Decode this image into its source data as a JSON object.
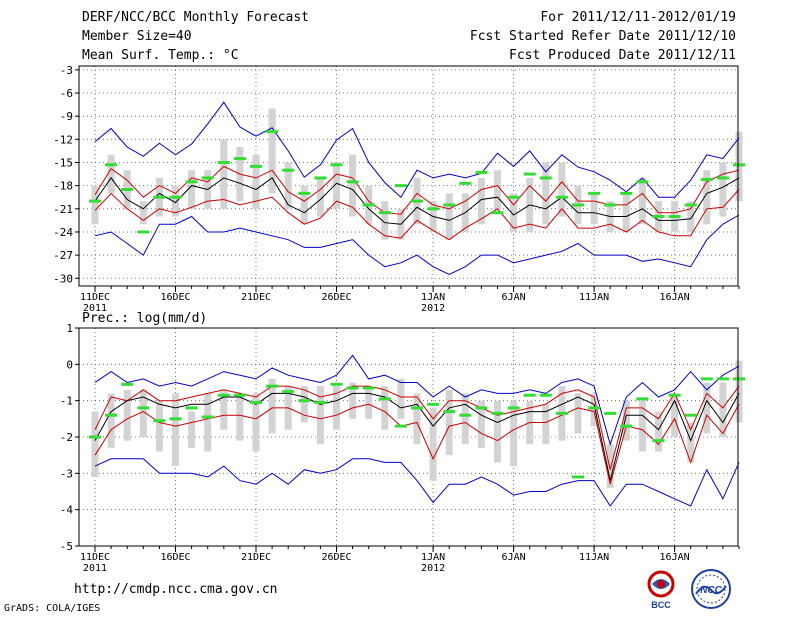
{
  "header": {
    "title": "DERF/NCC/BCC Monthly Forecast",
    "member_size": "Member Size=40",
    "variable": "Mean Surf. Temp.: °C",
    "period": "For 2011/12/11-2012/01/19",
    "started": "Fcst Started Refer Date 2011/12/10",
    "produced": "Fcst Produced Date 2011/12/11"
  },
  "footer": {
    "url": "http://cmdp.ncc.cma.gov.cn",
    "credit": "GrADS: COLA/IGES",
    "logo_bcc": "BCC",
    "logo_ncc": "NCC"
  },
  "chart_data": [
    {
      "type": "line",
      "title": "Mean Surf. Temp.: °C",
      "ylim": [
        -31,
        -2.5
      ],
      "yticks": [
        -3,
        -6,
        -9,
        -12,
        -15,
        -18,
        -21,
        -24,
        -27,
        -30
      ],
      "ytick_labels": [
        "-3",
        "-6",
        "-9",
        "-12",
        "-15",
        "-18",
        "-21",
        "-24",
        "-27",
        "-30"
      ],
      "x_days": 40,
      "xticks": [
        {
          "day": 1,
          "label": "11DEC",
          "sub": "2011"
        },
        {
          "day": 6,
          "label": "16DEC",
          "sub": ""
        },
        {
          "day": 11,
          "label": "21DEC",
          "sub": ""
        },
        {
          "day": 16,
          "label": "26DEC",
          "sub": ""
        },
        {
          "day": 22,
          "label": "1JAN",
          "sub": "2012"
        },
        {
          "day": 27,
          "label": "6JAN",
          "sub": ""
        },
        {
          "day": 32,
          "label": "11JAN",
          "sub": ""
        },
        {
          "day": 37,
          "label": "16JAN",
          "sub": ""
        }
      ],
      "grid": true,
      "colors": {
        "max": "#0000cc",
        "min": "#0000cc",
        "upper": "#cc0000",
        "lower": "#cc0000",
        "mean": "#000000",
        "box": "#d3d3d3",
        "marker": "#33dd33"
      },
      "series": [
        {
          "name": "max",
          "values": [
            -12.3,
            -10.6,
            -13.0,
            -14.2,
            -12.5,
            -14.0,
            -12.6,
            -10.0,
            -7.2,
            -10.4,
            -11.6,
            -10.5,
            -13.5,
            -16.9,
            -15.3,
            -12.1,
            -10.6,
            -15.0,
            -17.6,
            -19.5,
            -16.0,
            -17.0,
            -16.5,
            -17.0,
            -16.4,
            -13.8,
            -15.5,
            -13.5,
            -16.2,
            -14.0,
            -15.6,
            -16.2,
            -17.3,
            -18.8,
            -17.0,
            -19.5,
            -19.5,
            -17.3,
            -14.0,
            -14.5,
            -11.8
          ]
        },
        {
          "name": "upper",
          "values": [
            -19.2,
            -15.8,
            -17.3,
            -19.5,
            -18.0,
            -19.0,
            -17.0,
            -17.5,
            -15.5,
            -16.5,
            -17.0,
            -16.0,
            -18.8,
            -20.0,
            -18.5,
            -16.5,
            -17.0,
            -20.0,
            -21.5,
            -21.7,
            -19.0,
            -20.5,
            -21.0,
            -20.0,
            -18.5,
            -18.0,
            -20.5,
            -18.0,
            -20.0,
            -17.5,
            -20.0,
            -20.0,
            -20.5,
            -20.5,
            -19.0,
            -21.5,
            -21.5,
            -21.0,
            -17.5,
            -16.5,
            -16.0
          ]
        },
        {
          "name": "mean",
          "values": [
            -20.0,
            -17.0,
            -19.8,
            -21.0,
            -19.0,
            -20.2,
            -18.0,
            -18.5,
            -17.0,
            -17.7,
            -18.5,
            -17.0,
            -20.5,
            -21.5,
            -19.8,
            -17.7,
            -18.5,
            -21.0,
            -22.8,
            -23.0,
            -20.8,
            -22.0,
            -22.5,
            -21.5,
            -19.8,
            -19.5,
            -21.8,
            -20.5,
            -21.0,
            -19.5,
            -21.5,
            -21.5,
            -22.0,
            -22.0,
            -21.0,
            -22.5,
            -22.5,
            -22.3,
            -19.0,
            -18.2,
            -17.0
          ]
        },
        {
          "name": "lower",
          "values": [
            -21.2,
            -19.0,
            -21.0,
            -22.5,
            -21.0,
            -21.5,
            -20.8,
            -20.0,
            -19.8,
            -20.5,
            -20.0,
            -19.5,
            -21.5,
            -23.0,
            -22.2,
            -20.0,
            -20.8,
            -23.0,
            -24.5,
            -24.8,
            -22.5,
            -23.8,
            -25.0,
            -23.5,
            -22.3,
            -21.0,
            -23.5,
            -23.0,
            -23.5,
            -21.0,
            -23.5,
            -23.5,
            -23.0,
            -24.0,
            -22.5,
            -24.0,
            -24.5,
            -24.5,
            -21.0,
            -20.8,
            -18.5
          ]
        },
        {
          "name": "min",
          "values": [
            -24.5,
            -24.0,
            -25.5,
            -27.0,
            -23.0,
            -23.0,
            -22.0,
            -24.0,
            -24.0,
            -23.5,
            -24.0,
            -24.5,
            -25.0,
            -26.0,
            -26.0,
            -25.5,
            -25.0,
            -27.0,
            -28.5,
            -28.0,
            -27.0,
            -28.5,
            -29.5,
            -28.5,
            -27.0,
            -27.0,
            -28.0,
            -27.5,
            -27.0,
            -26.5,
            -25.5,
            -27.0,
            -27.0,
            -27.0,
            -27.8,
            -27.5,
            -28.0,
            -28.5,
            -25.0,
            -23.0,
            -21.8
          ]
        }
      ],
      "boxes": [
        [
          -23,
          -18
        ],
        [
          -19,
          -14
        ],
        [
          -21,
          -16
        ],
        [
          -23,
          -20
        ],
        [
          -22,
          -17
        ],
        [
          -22,
          -18
        ],
        [
          -21,
          -16
        ],
        [
          -21,
          -16
        ],
        [
          -21,
          -12
        ],
        [
          -20,
          -13
        ],
        [
          -21,
          -14
        ],
        [
          -19,
          -8
        ],
        [
          -21,
          -15
        ],
        [
          -23,
          -18
        ],
        [
          -22,
          -17
        ],
        [
          -21,
          -15
        ],
        [
          -22,
          -14
        ],
        [
          -23,
          -18
        ],
        [
          -25,
          -20
        ],
        [
          -25,
          -21
        ],
        [
          -23,
          -17
        ],
        [
          -24,
          -20
        ],
        [
          -25,
          -19
        ],
        [
          -24,
          -19
        ],
        [
          -23,
          -17
        ],
        [
          -21,
          -16
        ],
        [
          -24,
          -19
        ],
        [
          -24,
          -17
        ],
        [
          -23,
          -15
        ],
        [
          -22,
          -15
        ],
        [
          -23,
          -18
        ],
        [
          -23,
          -19
        ],
        [
          -24,
          -20
        ],
        [
          -24,
          -19
        ],
        [
          -23,
          -17
        ],
        [
          -24,
          -20
        ],
        [
          -24,
          -20
        ],
        [
          -24,
          -20
        ],
        [
          -23,
          -16
        ],
        [
          -22,
          -15
        ],
        [
          -20,
          -11
        ]
      ],
      "markers": [
        -20.0,
        -15.3,
        -18.5,
        -24.0,
        -19.5,
        -19.5,
        -17.5,
        -17.0,
        -15.0,
        -14.5,
        -15.5,
        -11.0,
        -16.0,
        -19.0,
        -17.0,
        -15.3,
        -17.5,
        -20.5,
        -21.5,
        -18.0,
        -20.0,
        -21.0,
        -20.5,
        -17.7,
        -16.3,
        -21.5,
        -19.5,
        -16.5,
        -17.0,
        -19.5,
        -20.5,
        -19.0,
        -20.5,
        -19.0,
        -17.5,
        -22.0,
        -22.0,
        -20.5,
        -17.2,
        -17.0,
        -15.3
      ]
    },
    {
      "type": "line",
      "title": "Prec.: log(mm/d)",
      "ylim": [
        -5,
        1
      ],
      "yticks": [
        1,
        0,
        -1,
        -2,
        -3,
        -4,
        -5
      ],
      "ytick_labels": [
        "1",
        "0",
        "-1",
        "-2",
        "-3",
        "-4",
        "-5"
      ],
      "x_days": 40,
      "xticks": [
        {
          "day": 1,
          "label": "11DEC",
          "sub": "2011"
        },
        {
          "day": 6,
          "label": "16DEC",
          "sub": ""
        },
        {
          "day": 11,
          "label": "21DEC",
          "sub": ""
        },
        {
          "day": 16,
          "label": "26DEC",
          "sub": ""
        },
        {
          "day": 22,
          "label": "1JAN",
          "sub": "2012"
        },
        {
          "day": 27,
          "label": "6JAN",
          "sub": ""
        },
        {
          "day": 32,
          "label": "11JAN",
          "sub": ""
        },
        {
          "day": 37,
          "label": "16JAN",
          "sub": ""
        }
      ],
      "grid": true,
      "colors": {
        "max": "#0000cc",
        "min": "#0000cc",
        "upper": "#cc0000",
        "lower": "#cc0000",
        "mean": "#000000",
        "box": "#d3d3d3",
        "marker": "#33dd33"
      },
      "series": [
        {
          "name": "max",
          "values": [
            -0.5,
            -0.2,
            -0.5,
            -0.4,
            -0.6,
            -0.5,
            -0.6,
            -0.4,
            -0.2,
            -0.3,
            -0.4,
            -0.1,
            -0.3,
            -0.4,
            -0.5,
            -0.3,
            0.25,
            -0.4,
            -0.3,
            -0.5,
            -0.5,
            -0.9,
            -0.6,
            -0.9,
            -0.7,
            -0.8,
            -0.8,
            -0.7,
            -0.8,
            -0.5,
            -0.4,
            -0.6,
            -2.2,
            -0.9,
            -0.5,
            -0.9,
            -0.7,
            -0.2,
            -0.7,
            -0.3,
            -0.05
          ]
        },
        {
          "name": "upper",
          "values": [
            -1.8,
            -0.9,
            -1.0,
            -0.7,
            -1.0,
            -1.0,
            -0.9,
            -0.8,
            -0.7,
            -0.8,
            -0.9,
            -0.6,
            -0.6,
            -0.7,
            -0.9,
            -0.8,
            -0.6,
            -0.6,
            -0.7,
            -0.9,
            -0.9,
            -1.5,
            -1.0,
            -1.0,
            -1.2,
            -1.4,
            -1.3,
            -1.2,
            -1.1,
            -0.8,
            -0.7,
            -0.9,
            -2.9,
            -1.2,
            -1.2,
            -1.5,
            -0.8,
            -1.8,
            -0.8,
            -1.2,
            -0.6
          ]
        },
        {
          "name": "mean",
          "values": [
            -2.1,
            -1.3,
            -1.0,
            -0.9,
            -1.1,
            -1.2,
            -1.1,
            -1.1,
            -0.9,
            -0.9,
            -1.1,
            -0.8,
            -0.8,
            -0.9,
            -1.1,
            -1.0,
            -0.8,
            -0.8,
            -0.9,
            -1.2,
            -1.1,
            -1.7,
            -1.2,
            -1.1,
            -1.4,
            -1.6,
            -1.4,
            -1.3,
            -1.3,
            -1.1,
            -0.9,
            -1.1,
            -3.2,
            -1.4,
            -1.4,
            -1.8,
            -1.0,
            -2.1,
            -1.0,
            -1.6,
            -0.8
          ]
        },
        {
          "name": "lower",
          "values": [
            -2.5,
            -1.8,
            -1.5,
            -1.3,
            -1.6,
            -1.7,
            -1.6,
            -1.5,
            -1.4,
            -1.4,
            -1.5,
            -1.2,
            -1.2,
            -1.4,
            -1.5,
            -1.4,
            -1.2,
            -1.1,
            -1.3,
            -1.7,
            -1.6,
            -2.6,
            -1.7,
            -1.6,
            -1.9,
            -2.1,
            -1.8,
            -1.6,
            -1.6,
            -1.4,
            -1.2,
            -1.3,
            -3.3,
            -1.7,
            -1.8,
            -2.2,
            -1.5,
            -2.7,
            -1.4,
            -1.9,
            -1.1
          ]
        },
        {
          "name": "min",
          "values": [
            -2.8,
            -2.6,
            -2.6,
            -2.6,
            -3.0,
            -3.0,
            -3.0,
            -3.1,
            -2.8,
            -3.2,
            -3.3,
            -3.0,
            -3.3,
            -2.9,
            -3.0,
            -2.9,
            -2.6,
            -2.6,
            -2.7,
            -2.7,
            -3.2,
            -3.8,
            -3.3,
            -3.3,
            -3.1,
            -3.3,
            -3.6,
            -3.5,
            -3.5,
            -3.3,
            -3.2,
            -3.2,
            -3.9,
            -3.3,
            -3.3,
            -3.5,
            -3.7,
            -3.9,
            -2.9,
            -3.7,
            -2.7
          ]
        }
      ],
      "boxes": [
        [
          -3.1,
          -1.3
        ],
        [
          -2.3,
          -0.8
        ],
        [
          -2.1,
          -0.7
        ],
        [
          -2.0,
          -0.7
        ],
        [
          -2.4,
          -1.0
        ],
        [
          -2.8,
          -0.8
        ],
        [
          -2.3,
          -1.3
        ],
        [
          -2.4,
          -0.8
        ],
        [
          -1.8,
          -0.7
        ],
        [
          -2.1,
          -0.8
        ],
        [
          -2.4,
          -0.8
        ],
        [
          -1.9,
          -0.4
        ],
        [
          -1.8,
          -0.6
        ],
        [
          -1.6,
          -0.6
        ],
        [
          -2.2,
          -0.6
        ],
        [
          -1.8,
          -0.6
        ],
        [
          -1.5,
          -0.5
        ],
        [
          -1.5,
          -0.6
        ],
        [
          -1.8,
          -0.6
        ],
        [
          -1.5,
          -0.4
        ],
        [
          -2.2,
          -0.8
        ],
        [
          -3.2,
          -1.2
        ],
        [
          -2.5,
          -0.7
        ],
        [
          -2.2,
          -0.8
        ],
        [
          -2.3,
          -1.0
        ],
        [
          -2.7,
          -1.0
        ],
        [
          -2.8,
          -1.0
        ],
        [
          -2.2,
          -1.0
        ],
        [
          -2.2,
          -1.1
        ],
        [
          -2.1,
          -0.6
        ],
        [
          -1.9,
          -0.8
        ],
        [
          -1.7,
          -0.8
        ],
        [
          -3.4,
          -2.2
        ],
        [
          -2.1,
          -1.0
        ],
        [
          -2.4,
          -1.0
        ],
        [
          -2.4,
          -1.3
        ],
        [
          -2.0,
          -0.8
        ],
        [
          -2.7,
          -1.6
        ],
        [
          -1.9,
          -0.5
        ],
        [
          -2.0,
          -0.5
        ],
        [
          -1.6,
          0.1
        ]
      ],
      "markers": [
        -2.0,
        -1.4,
        -0.55,
        -1.2,
        -1.55,
        -1.5,
        -1.2,
        -1.45,
        -0.85,
        -0.85,
        -1.05,
        -0.6,
        -0.75,
        -1.0,
        -1.05,
        -0.55,
        -0.65,
        -0.65,
        -0.95,
        -1.7,
        -1.2,
        -1.1,
        -1.3,
        -1.4,
        -1.2,
        -1.35,
        -1.2,
        -0.85,
        -0.85,
        -1.35,
        -3.1,
        -1.2,
        -1.35,
        -1.7,
        -0.95,
        -2.1,
        -0.85,
        -1.4,
        -0.4,
        -0.4,
        -0.4
      ]
    }
  ]
}
